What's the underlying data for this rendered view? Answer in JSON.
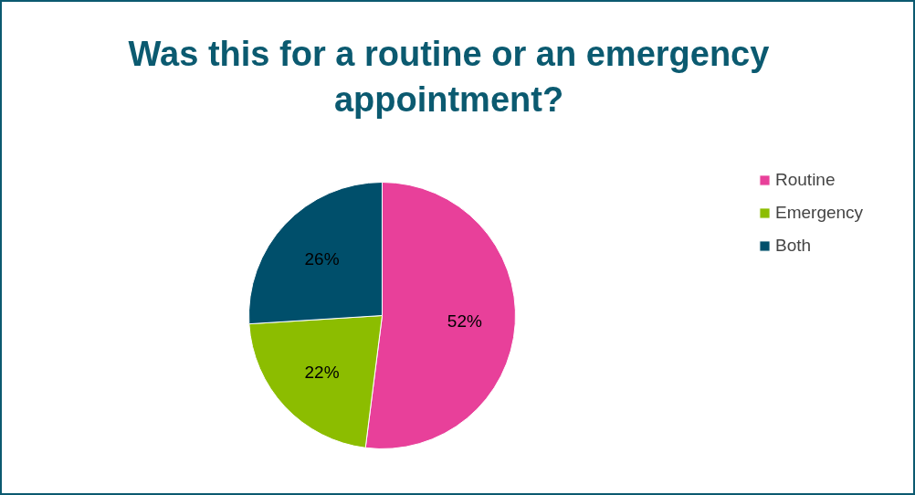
{
  "chart_data": {
    "type": "pie",
    "title": "Was this for a routine or an emergency appointment?",
    "categories": [
      "Routine",
      "Emergency",
      "Both"
    ],
    "values": [
      52,
      22,
      26
    ],
    "colors": [
      "#e8409a",
      "#8cbd00",
      "#004f6b"
    ],
    "value_labels": [
      "52%",
      "22%",
      "26%"
    ],
    "legend": "right"
  }
}
